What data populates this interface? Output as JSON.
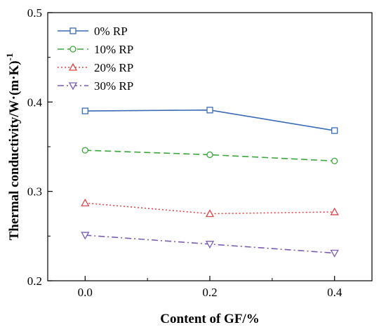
{
  "chart_data": {
    "type": "line",
    "title": "",
    "xlabel": "Content of GF/%",
    "ylabel_main": "Thermal conductivity/W·(m·K)",
    "ylabel_sup": "-1",
    "x": [
      0.0,
      0.2,
      0.4
    ],
    "x_tick_labels": [
      "0.0",
      "0.2",
      "0.4"
    ],
    "y_tick_labels": [
      "0.2",
      "0.3",
      "0.4",
      "0.5"
    ],
    "xlim": [
      -0.06,
      0.46
    ],
    "ylim": [
      0.2,
      0.5
    ],
    "grid": false,
    "legend_position": "top-left",
    "series": [
      {
        "name": "0% RP",
        "values": [
          0.39,
          0.391,
          0.368
        ],
        "color": "#3a6bb5",
        "dash": "solid",
        "marker": "square"
      },
      {
        "name": "10% RP",
        "values": [
          0.346,
          0.341,
          0.334
        ],
        "color": "#3aa73a",
        "dash": "dashed",
        "marker": "circle"
      },
      {
        "name": "20% RP",
        "values": [
          0.287,
          0.275,
          0.277
        ],
        "color": "#e0454a",
        "dash": "dotted",
        "marker": "triangle-up"
      },
      {
        "name": "30% RP",
        "values": [
          0.251,
          0.241,
          0.231
        ],
        "color": "#7a5cb0",
        "dash": "dash-dot",
        "marker": "triangle-down"
      }
    ]
  }
}
